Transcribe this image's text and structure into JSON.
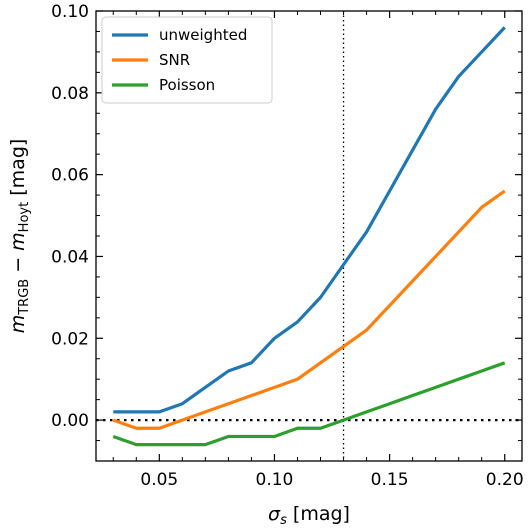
{
  "chart_data": {
    "type": "line",
    "xlabel": "[mag]",
    "xlabel_symbol": "σ",
    "xlabel_subscript": "s",
    "ylabel_m": "m",
    "ylabel_sub1": "TRGB",
    "ylabel_minus": " − ",
    "ylabel_sub2": "Hoyt",
    "ylabel_unit": " [mag]",
    "xlim": [
      0.0225,
      0.2075
    ],
    "ylim": [
      -0.01,
      0.1
    ],
    "xticks": [
      0.05,
      0.1,
      0.15,
      0.2
    ],
    "xtick_labels": [
      "0.05",
      "0.10",
      "0.15",
      "0.20"
    ],
    "yticks": [
      0.0,
      0.02,
      0.04,
      0.06,
      0.08,
      0.1
    ],
    "ytick_labels": [
      "0.00",
      "0.02",
      "0.04",
      "0.06",
      "0.08",
      "0.10"
    ],
    "x_minor_step": 0.01,
    "y_minor_step": 0.005,
    "vline_x": 0.13,
    "hline_y": 0.0,
    "legend_position": "top-left",
    "grid": false,
    "series": [
      {
        "name": "unweighted",
        "color": "#1f77b4",
        "x": [
          0.03,
          0.04,
          0.05,
          0.06,
          0.07,
          0.08,
          0.09,
          0.1,
          0.11,
          0.12,
          0.13,
          0.14,
          0.15,
          0.16,
          0.17,
          0.18,
          0.19,
          0.2
        ],
        "y": [
          0.002,
          0.002,
          0.002,
          0.004,
          0.008,
          0.012,
          0.014,
          0.02,
          0.024,
          0.03,
          0.038,
          0.046,
          0.056,
          0.066,
          0.076,
          0.084,
          0.09,
          0.096
        ]
      },
      {
        "name": "SNR",
        "color": "#ff7f0e",
        "x": [
          0.03,
          0.04,
          0.05,
          0.06,
          0.07,
          0.08,
          0.09,
          0.1,
          0.11,
          0.12,
          0.13,
          0.14,
          0.15,
          0.16,
          0.17,
          0.18,
          0.19,
          0.2
        ],
        "y": [
          0.0,
          -0.002,
          -0.002,
          0.0,
          0.002,
          0.004,
          0.006,
          0.008,
          0.01,
          0.014,
          0.018,
          0.022,
          0.028,
          0.034,
          0.04,
          0.046,
          0.052,
          0.056
        ]
      },
      {
        "name": "Poisson",
        "color": "#2ca02c",
        "x": [
          0.03,
          0.04,
          0.05,
          0.06,
          0.07,
          0.08,
          0.09,
          0.1,
          0.11,
          0.12,
          0.13,
          0.14,
          0.15,
          0.16,
          0.17,
          0.18,
          0.19,
          0.2
        ],
        "y": [
          -0.004,
          -0.006,
          -0.006,
          -0.006,
          -0.006,
          -0.004,
          -0.004,
          -0.004,
          -0.002,
          -0.002,
          0.0,
          0.002,
          0.004,
          0.006,
          0.008,
          0.01,
          0.012,
          0.014
        ]
      }
    ]
  }
}
